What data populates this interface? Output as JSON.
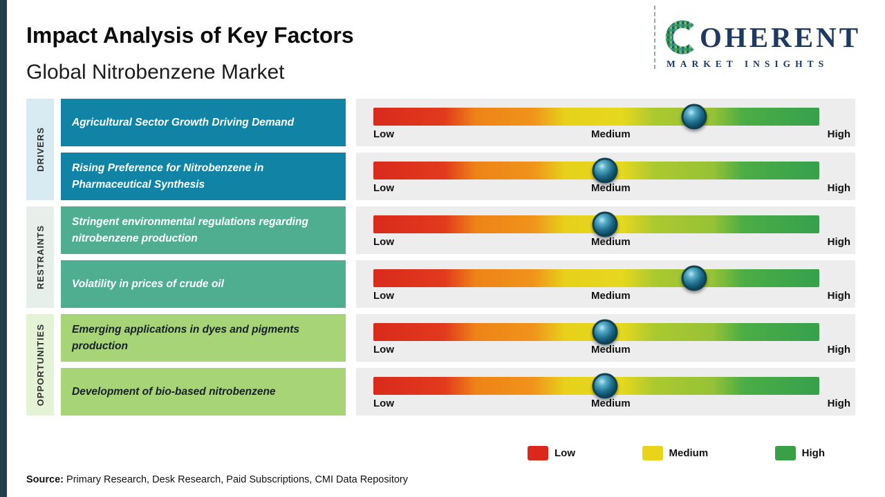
{
  "header": {
    "title": "Impact Analysis of Key Factors",
    "subtitle": "Global Nitrobenzene Market"
  },
  "logo": {
    "brand": "COHERENT",
    "brand_rest": "OHERENT",
    "tagline": "MARKET INSIGHTS"
  },
  "categories": [
    "DRIVERS",
    "RESTRAINTS",
    "OPPORTUNITIES"
  ],
  "scale": {
    "low": "Low",
    "medium": "Medium",
    "high": "High"
  },
  "chart_data": {
    "type": "table",
    "title": "Impact Analysis of Key Factors",
    "subtitle": "Global Nitrobenzene Market",
    "scale_labels": [
      "Low",
      "Medium",
      "High"
    ],
    "rows": [
      {
        "category": "DRIVERS",
        "factor": "Agricultural Sector Growth Driving Demand",
        "impact": "Medium-High",
        "position_pct": 72
      },
      {
        "category": "DRIVERS",
        "factor": "Rising Preference for Nitrobenzene in Pharmaceutical Synthesis",
        "impact": "Medium",
        "position_pct": 52
      },
      {
        "category": "RESTRAINTS",
        "factor": "Stringent environmental regulations regarding nitrobenzene production",
        "impact": "Medium",
        "position_pct": 52
      },
      {
        "category": "RESTRAINTS",
        "factor": "Volatility in prices of crude oil",
        "impact": "Medium-High",
        "position_pct": 72
      },
      {
        "category": "OPPORTUNITIES",
        "factor": "Emerging applications in dyes and pigments production",
        "impact": "Medium",
        "position_pct": 52
      },
      {
        "category": "OPPORTUNITIES",
        "factor": "Development of bio-based nitrobenzene",
        "impact": "Medium",
        "position_pct": 52
      }
    ]
  },
  "legend": [
    {
      "label": "Low",
      "color": "#da291c"
    },
    {
      "label": "Medium",
      "color": "#e8d51a"
    },
    {
      "label": "High",
      "color": "#3aa047"
    }
  ],
  "source": {
    "label": "Source:",
    "text": "Primary Research, Desk Research, Paid Subscriptions, CMI Data Repository"
  },
  "colors": {
    "drivers_card": "#1184a6",
    "restraints_card": "#4fad90",
    "opportunities_card": "#a6d476",
    "drivers_sidebar": "#d8eaf2",
    "restraints_sidebar": "#e7efeb",
    "opportunities_sidebar": "#e4f2d6",
    "left_stripe": "#233f4c",
    "logo_navy": "#1e3a63"
  }
}
